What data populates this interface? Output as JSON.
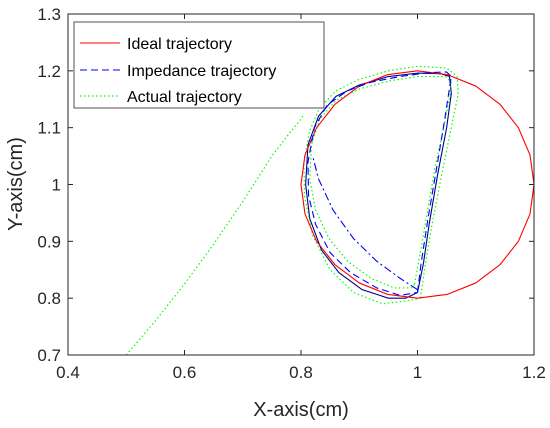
{
  "chart_data": {
    "type": "line",
    "title": "",
    "xlabel": "X-axis(cm)",
    "ylabel": "Y-axis(cm)",
    "xlim": [
      0.4,
      1.2
    ],
    "ylim": [
      0.7,
      1.3
    ],
    "xticks": [
      "0.4",
      "0.6",
      "0.8",
      "1",
      "1.2"
    ],
    "yticks": [
      "0.7",
      "0.8",
      "0.9",
      "1",
      "1.1",
      "1.2",
      "1.3"
    ],
    "legend_position": "top-left",
    "grid": false,
    "series": [
      {
        "name": "Ideal trajectory",
        "style": "solid",
        "color": "#ff0000",
        "x": [
          1.0,
          1.0518,
          1.1,
          1.1414,
          1.1732,
          1.1932,
          1.2,
          1.1932,
          1.1732,
          1.1414,
          1.1,
          1.0518,
          1.0,
          0.9482,
          0.9,
          0.8586,
          0.8268,
          0.8068,
          0.8,
          0.8068,
          0.8268,
          0.8586,
          0.9,
          0.9482,
          1.0
        ],
        "y": [
          0.8,
          0.8068,
          0.8268,
          0.8586,
          0.9,
          0.9482,
          1.0,
          1.0518,
          1.1,
          1.1414,
          1.1732,
          1.1932,
          1.2,
          1.1932,
          1.1732,
          1.1414,
          1.1,
          1.0518,
          1.0,
          0.9482,
          0.9,
          0.8586,
          0.8268,
          0.8068,
          0.8
        ]
      },
      {
        "name": "Impedance trajectory",
        "style": "dashed",
        "color": "#0000ff",
        "x": [
          1.0,
          1.006,
          1.018,
          1.033,
          1.046,
          1.055,
          1.058,
          1.05,
          1.02,
          0.97,
          0.92,
          0.88,
          0.845,
          0.823,
          0.812,
          0.813,
          0.825,
          0.85,
          0.885,
          0.93,
          0.97,
          1.0
        ],
        "y": [
          0.81,
          0.86,
          0.94,
          1.03,
          1.11,
          1.17,
          1.19,
          1.198,
          1.197,
          1.19,
          1.18,
          1.165,
          1.14,
          1.1,
          1.04,
          0.98,
          0.93,
          0.88,
          0.845,
          0.818,
          0.805,
          0.81
        ]
      },
      {
        "name": "Actual trajectory",
        "style": "dotted",
        "color": "#00ff00",
        "x": [
          0.5,
          0.55,
          0.6,
          0.65,
          0.7,
          0.75,
          0.78,
          0.8,
          0.805
        ],
        "y": [
          0.7,
          0.76,
          0.825,
          0.895,
          0.97,
          1.05,
          1.09,
          1.115,
          1.125
        ]
      }
    ],
    "unlabeled_lines": [
      {
        "style": "solid",
        "color": "#00008b",
        "x": [
          1.0,
          1.01,
          1.02,
          1.035,
          1.05,
          1.058,
          1.055,
          1.04,
          1.0,
          0.95,
          0.9,
          0.86,
          0.83,
          0.812,
          0.808,
          0.815,
          0.835,
          0.865,
          0.905,
          0.95,
          0.98,
          1.0
        ],
        "y": [
          0.81,
          0.86,
          0.93,
          1.02,
          1.1,
          1.16,
          1.19,
          1.195,
          1.196,
          1.19,
          1.175,
          1.155,
          1.12,
          1.07,
          1.0,
          0.94,
          0.885,
          0.845,
          0.815,
          0.8,
          0.8,
          0.81
        ]
      },
      {
        "style": "dashdot",
        "color": "#0000ff",
        "x": [
          1.0,
          0.97,
          0.93,
          0.89,
          0.855,
          0.83,
          0.82
        ],
        "y": [
          0.815,
          0.835,
          0.865,
          0.905,
          0.955,
          1.01,
          1.05
        ]
      },
      {
        "style": "dotted",
        "color": "#00ff00",
        "x": [
          1.005,
          1.012,
          1.025,
          1.042,
          1.058,
          1.07,
          1.068,
          1.05,
          1.0,
          0.95,
          0.9,
          0.86,
          0.832,
          0.815,
          0.805,
          0.806,
          0.82,
          0.85,
          0.89,
          0.94,
          0.98,
          1.005
        ],
        "y": [
          0.8,
          0.85,
          0.93,
          1.02,
          1.1,
          1.16,
          1.19,
          1.205,
          1.208,
          1.2,
          1.185,
          1.165,
          1.135,
          1.095,
          1.04,
          0.98,
          0.91,
          0.85,
          0.81,
          0.79,
          0.795,
          0.8
        ]
      },
      {
        "style": "dotted",
        "color": "#00ff00",
        "x": [
          0.995,
          1.003,
          1.015,
          1.03,
          1.045,
          1.055,
          1.058,
          1.048,
          1.0,
          0.95,
          0.9,
          0.86,
          0.832,
          0.818,
          0.815,
          0.825,
          0.848,
          0.88,
          0.92,
          0.96,
          0.99,
          0.995
        ],
        "y": [
          0.825,
          0.87,
          0.94,
          1.03,
          1.1,
          1.155,
          1.18,
          1.19,
          1.19,
          1.182,
          1.168,
          1.148,
          1.115,
          1.07,
          1.01,
          0.955,
          0.905,
          0.865,
          0.835,
          0.818,
          0.818,
          0.825
        ]
      }
    ]
  }
}
